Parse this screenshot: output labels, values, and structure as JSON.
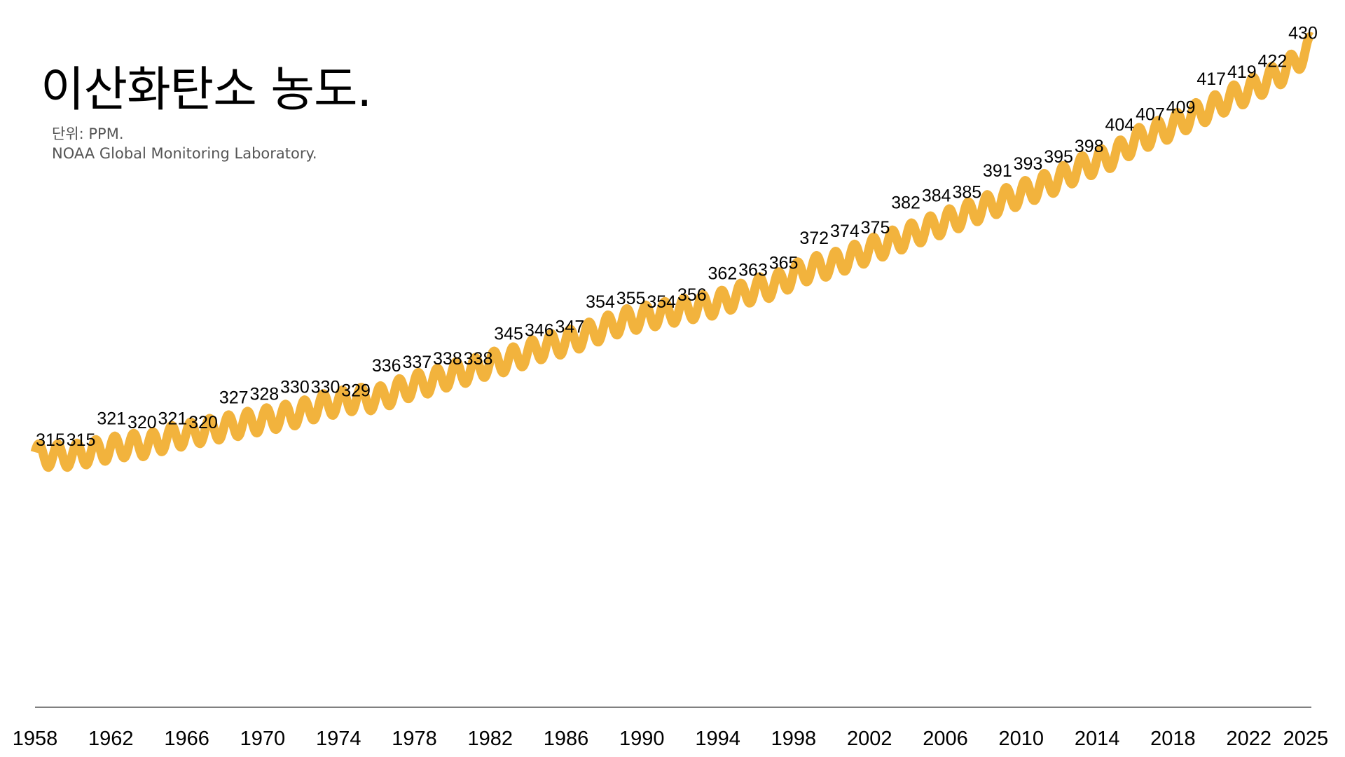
{
  "chart_data": {
    "type": "line",
    "title": "이산화탄소 농도.",
    "subtitle": "단위: PPM.",
    "source": "NOAA Global Monitoring Laboratory.",
    "xlabel": "",
    "ylabel": "",
    "ylim": [
      240,
      435
    ],
    "xlim": [
      1958,
      2025.3
    ],
    "grid": false,
    "legend": "none",
    "line_color": "#F2B33D",
    "x_ticks": [
      "1958",
      "1962",
      "1966",
      "1970",
      "1974",
      "1978",
      "1982",
      "1986",
      "1990",
      "1994",
      "1998",
      "2002",
      "2006",
      "2010",
      "2014",
      "2018",
      "2022",
      "2025"
    ],
    "series": [
      {
        "x": [
          1959,
          1960,
          1961,
          1962,
          1963,
          1964,
          1965,
          1966,
          1967,
          1968,
          1969,
          1970,
          1971,
          1972,
          1973,
          1974,
          1975,
          1976,
          1977,
          1978,
          1979,
          1980,
          1981,
          1982,
          1983,
          1984,
          1985,
          1986,
          1987,
          1988,
          1989,
          1990,
          1991,
          1992,
          1993,
          1994,
          1995,
          1996,
          1997,
          1998,
          1999,
          2000,
          2001,
          2002,
          2003,
          2004,
          2005,
          2006,
          2007,
          2008,
          2009,
          2010,
          2011,
          2012,
          2013,
          2014,
          2015,
          2016,
          2017,
          2018,
          2019,
          2020,
          2021,
          2022,
          2023,
          2024,
          2025
        ],
        "values": [
          315,
          315,
          316,
          317,
          318,
          318,
          320,
          321,
          322,
          323,
          324,
          325,
          326,
          327,
          329,
          330,
          331,
          331,
          333,
          335,
          336,
          338,
          339,
          341,
          342,
          344,
          346,
          347,
          349,
          351,
          353,
          354,
          355,
          356,
          357,
          358,
          360,
          362,
          363,
          366,
          368,
          369,
          371,
          373,
          375,
          377,
          379,
          381,
          383,
          385,
          387,
          389,
          391,
          393,
          396,
          398,
          400,
          404,
          406,
          408,
          411,
          413,
          416,
          418,
          421,
          424,
          429
        ],
        "seasonal_amplitude_ppm": 3.3,
        "data_labels": [
          {
            "x": 1960.3,
            "text": "315"
          },
          {
            "x": 1962.2,
            "text": "315"
          },
          {
            "x": 1964.5,
            "text": "321"
          },
          {
            "x": 1966.3,
            "text": "320"
          },
          {
            "x": 1968.2,
            "text": "321"
          },
          {
            "x": 1970.1,
            "text": "320"
          },
          {
            "x": 1971.8,
            "text": "327"
          },
          {
            "x": 1973.8,
            "text": "328"
          },
          {
            "x": 1975.8,
            "text": "330"
          },
          {
            "x": 1977.8,
            "text": "330"
          },
          {
            "x": 1979.4,
            "text": "329"
          },
          {
            "x": 1981.5,
            "text": "336"
          },
          {
            "x": 1983.3,
            "text": "337"
          },
          {
            "x": 1985.4,
            "text": "338"
          },
          {
            "x": 1987.2,
            "text": "338"
          },
          {
            "x": 1989.3,
            "text": "345"
          },
          {
            "x": 1991.1,
            "text": "346"
          },
          {
            "x": 1992.8,
            "text": "347"
          },
          {
            "x": 1995.0,
            "text": "354"
          },
          {
            "x": 1996.8,
            "text": "355"
          },
          {
            "x": 1998.7,
            "text": "354"
          },
          {
            "x": 2000.4,
            "text": "356"
          },
          {
            "x": 2002.4,
            "text": "362"
          },
          {
            "x": 2004.2,
            "text": "363"
          },
          {
            "x": 2005.8,
            "text": "365"
          },
          {
            "x": 2007.2,
            "text": "372"
          },
          {
            "x": 2009.0,
            "text": "374"
          },
          {
            "x": 2010.7,
            "text": "375"
          },
          {
            "x": 2012.3,
            "text": "382"
          },
          {
            "x": 2014.1,
            "text": "384"
          },
          {
            "x": 2015.8,
            "text": "385"
          },
          {
            "x": 2016.8,
            "text": "391"
          },
          {
            "x": 2018.6,
            "text": "393"
          },
          {
            "x": 2020.5,
            "text": "395"
          },
          {
            "x": 2022.1,
            "text": "398"
          },
          {
            "x": 2022.8,
            "text": "404"
          },
          {
            "x": 2024.5,
            "text": "407"
          },
          {
            "x": 2026.2,
            "text": "409"
          },
          {
            "x": 2028.6,
            "text": "417"
          },
          {
            "x": 2030.1,
            "text": "419"
          },
          {
            "x": 2031.8,
            "text": "422"
          },
          {
            "x": 2033.5,
            "text": "430"
          }
        ]
      }
    ]
  }
}
